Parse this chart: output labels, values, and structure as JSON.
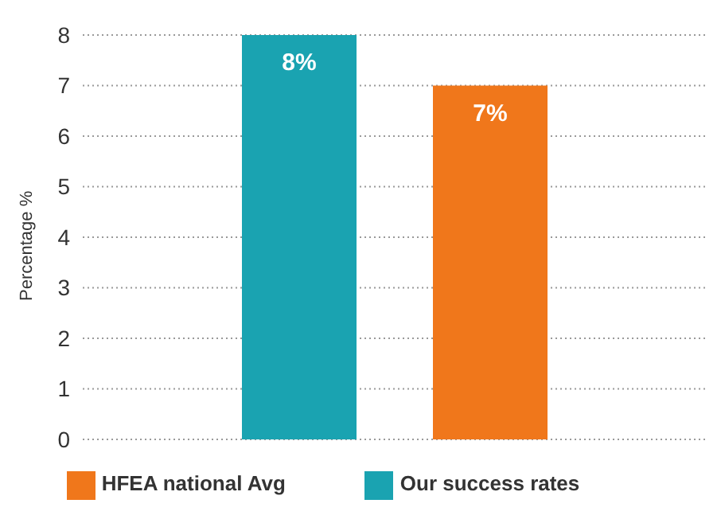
{
  "chart_data": {
    "type": "bar",
    "ylabel": "Percentage %",
    "categories": [
      null
    ],
    "series": [
      {
        "name": "Our success rates",
        "color": "#1aa3b1",
        "values": [
          8
        ],
        "value_labels": [
          "8%"
        ]
      },
      {
        "name": "HFEA national Avg",
        "color": "#f0771b",
        "values": [
          7
        ],
        "value_labels": [
          "7%"
        ]
      }
    ],
    "ylim": [
      0,
      8
    ],
    "yticks": [
      0,
      1,
      2,
      3,
      4,
      5,
      6,
      7,
      8
    ],
    "grid": "y",
    "legend": "bottom"
  }
}
